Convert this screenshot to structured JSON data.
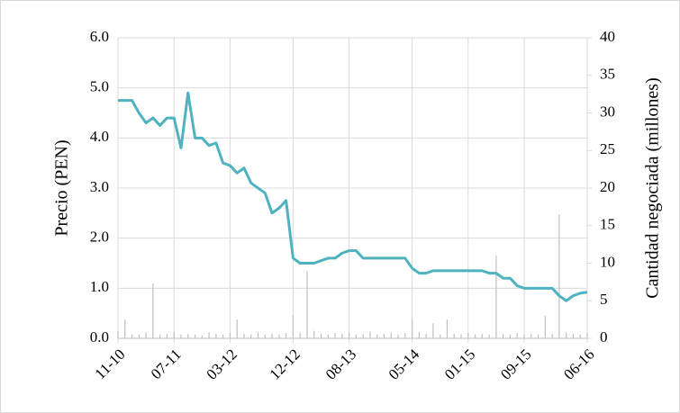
{
  "chart_data": {
    "type": "line",
    "y_label": "Precio (PEN)",
    "y2_label": "Cantidad negociada (millones)",
    "categories": [
      "11-10",
      null,
      null,
      null,
      null,
      null,
      null,
      null,
      "07-11",
      null,
      null,
      null,
      null,
      null,
      null,
      null,
      "03-12",
      null,
      null,
      null,
      null,
      null,
      null,
      null,
      null,
      "12-12",
      null,
      null,
      null,
      null,
      null,
      null,
      null,
      "08-13",
      null,
      null,
      null,
      null,
      null,
      null,
      null,
      null,
      "05-14",
      null,
      null,
      null,
      null,
      null,
      null,
      null,
      "01-15",
      null,
      null,
      null,
      null,
      null,
      null,
      null,
      "09-15",
      null,
      null,
      null,
      null,
      null,
      null,
      null,
      null,
      "06-16"
    ],
    "series": [
      {
        "type": "line",
        "color": "#4fb3bf",
        "values": [
          4.75,
          4.75,
          4.75,
          4.5,
          4.3,
          4.4,
          4.25,
          4.4,
          4.4,
          3.8,
          4.9,
          4.0,
          4.0,
          3.85,
          3.9,
          3.5,
          3.45,
          3.3,
          3.4,
          3.1,
          3.0,
          2.9,
          2.5,
          2.6,
          2.75,
          1.6,
          1.5,
          1.5,
          1.5,
          1.55,
          1.6,
          1.6,
          1.7,
          1.75,
          1.75,
          1.6,
          1.6,
          1.6,
          1.6,
          1.6,
          1.6,
          1.6,
          1.4,
          1.3,
          1.3,
          1.35,
          1.35,
          1.35,
          1.35,
          1.35,
          1.35,
          1.35,
          1.35,
          1.3,
          1.3,
          1.2,
          1.2,
          1.05,
          1.0,
          1.0,
          1.0,
          1.0,
          1.0,
          0.85,
          0.75,
          0.85,
          0.9,
          0.92
        ]
      },
      {
        "type": "bar",
        "axis": "y2",
        "color": "#bfbfbf",
        "values": [
          1,
          2.5,
          0.5,
          0.5,
          0.8,
          7.3,
          0.5,
          0.6,
          0.8,
          0.5,
          0.6,
          0.5,
          0.4,
          0.8,
          0.6,
          0.5,
          0.7,
          2.5,
          0.6,
          0.5,
          0.8,
          0.5,
          0.6,
          0.5,
          0.7,
          3,
          0.8,
          9,
          1,
          0.6,
          0.5,
          0.7,
          0.6,
          0.8,
          0.5,
          0.6,
          0.9,
          0.5,
          0.6,
          0.8,
          0.5,
          0.7,
          2.5,
          0.8,
          0.6,
          2,
          0.5,
          2.5,
          0.6,
          0.5,
          0.7,
          0.5,
          0.6,
          0.5,
          11,
          0.6,
          0.5,
          0.7,
          0.5,
          0.6,
          0.5,
          3,
          0.6,
          16.5,
          0.8,
          0.6,
          0.5,
          0.7
        ]
      }
    ],
    "ylim": [
      0,
      6
    ],
    "yticks": [
      {
        "value": 0,
        "label": "0.0"
      },
      {
        "value": 1,
        "label": "1.0"
      },
      {
        "value": 2,
        "label": "2.0"
      },
      {
        "value": 3,
        "label": "3.0"
      },
      {
        "value": 4,
        "label": "4.0"
      },
      {
        "value": 5,
        "label": "5.0"
      },
      {
        "value": 6,
        "label": "6.0"
      }
    ],
    "y2lim": [
      0,
      40
    ],
    "y2ticks": [
      0,
      5,
      10,
      15,
      20,
      25,
      30,
      35,
      40
    ],
    "grid": true
  }
}
